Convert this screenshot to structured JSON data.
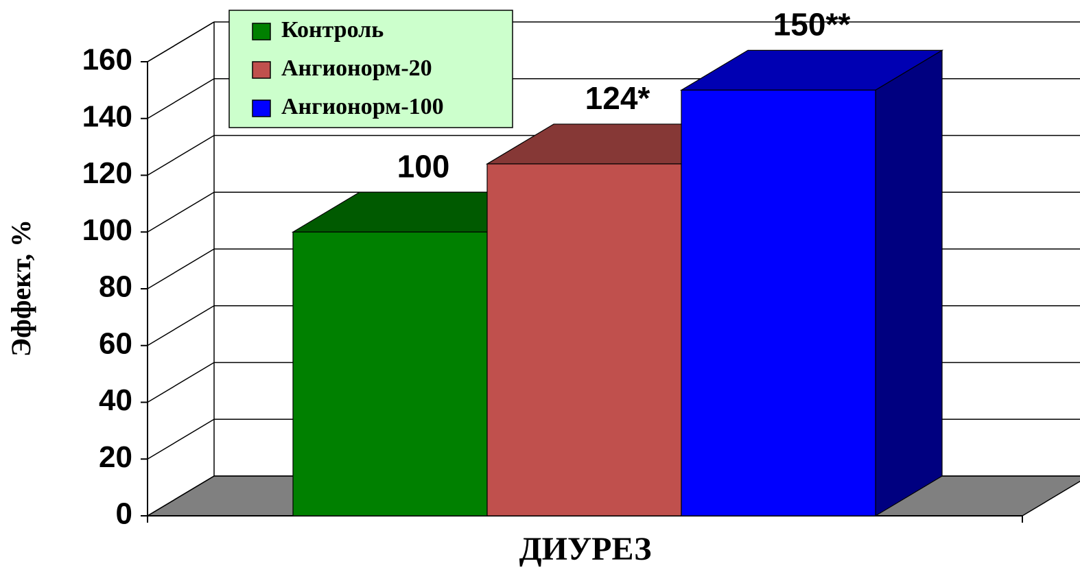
{
  "chart_data": {
    "type": "bar3d",
    "y_label": "Эффект, %",
    "categories": [
      "ДИУРЕЗ"
    ],
    "series": [
      {
        "name": "Контроль",
        "color": "#008000",
        "values": [
          100
        ],
        "value_labels": [
          "100"
        ]
      },
      {
        "name": "Ангионорм-20",
        "color": "#c0504d",
        "values": [
          124
        ],
        "value_labels": [
          "124*"
        ]
      },
      {
        "name": "Ангионорм-100",
        "color": "#0000ff",
        "values": [
          150
        ],
        "value_labels": [
          "150**"
        ]
      }
    ],
    "ylim": [
      0,
      160
    ],
    "yticks": [
      0,
      20,
      40,
      60,
      80,
      100,
      120,
      140,
      160
    ],
    "grid": true,
    "legend": "top-left"
  }
}
